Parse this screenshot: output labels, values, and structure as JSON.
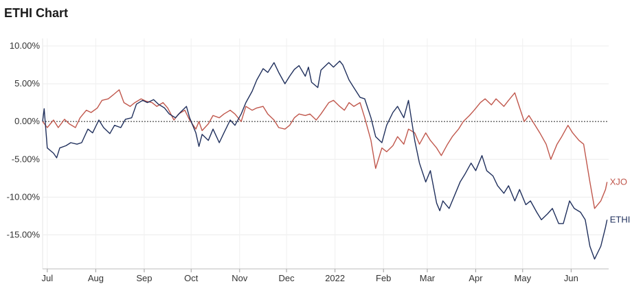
{
  "title": "ETHI Chart",
  "chart_data": {
    "type": "line",
    "title": "ETHI Chart",
    "xlabel": "",
    "ylabel": "",
    "ylim": [
      -19.5,
      11
    ],
    "x_range": [
      "2021-06-28",
      "2022-06-25"
    ],
    "grid": true,
    "zero_line": "dotted",
    "legend": "end-of-line labels",
    "y_ticks": [
      {
        "value": 10,
        "label": "10.00%"
      },
      {
        "value": 5,
        "label": "5.00%"
      },
      {
        "value": 0,
        "label": "0.00%"
      },
      {
        "value": -5,
        "label": "-5.00%"
      },
      {
        "value": -10,
        "label": "-10.00%"
      },
      {
        "value": -15,
        "label": "-15.00%"
      }
    ],
    "x_ticks": [
      {
        "date": "2021-07-01",
        "label": "Jul"
      },
      {
        "date": "2021-08-01",
        "label": "Aug"
      },
      {
        "date": "2021-09-01",
        "label": "Sep"
      },
      {
        "date": "2021-10-01",
        "label": "Oct"
      },
      {
        "date": "2021-11-01",
        "label": "Nov"
      },
      {
        "date": "2021-12-01",
        "label": "Dec"
      },
      {
        "date": "2022-01-01",
        "label": "2022"
      },
      {
        "date": "2022-02-01",
        "label": "Feb"
      },
      {
        "date": "2022-03-01",
        "label": "Mar"
      },
      {
        "date": "2022-04-01",
        "label": "Apr"
      },
      {
        "date": "2022-05-01",
        "label": "May"
      },
      {
        "date": "2022-06-01",
        "label": "Jun"
      }
    ],
    "series": [
      {
        "name": "ETHI",
        "color": "#1f2f5c",
        "points": [
          [
            "2021-06-28",
            0
          ],
          [
            "2021-06-29",
            1.7
          ],
          [
            "2021-07-01",
            -3.5
          ],
          [
            "2021-07-05",
            -4.2
          ],
          [
            "2021-07-07",
            -4.8
          ],
          [
            "2021-07-09",
            -3.5
          ],
          [
            "2021-07-13",
            -3.2
          ],
          [
            "2021-07-16",
            -2.8
          ],
          [
            "2021-07-20",
            -3.0
          ],
          [
            "2021-07-23",
            -2.8
          ],
          [
            "2021-07-27",
            -1.0
          ],
          [
            "2021-07-30",
            -1.5
          ],
          [
            "2021-08-03",
            0.2
          ],
          [
            "2021-08-06",
            -0.8
          ],
          [
            "2021-08-10",
            -1.6
          ],
          [
            "2021-08-13",
            -0.5
          ],
          [
            "2021-08-17",
            -0.8
          ],
          [
            "2021-08-20",
            0.3
          ],
          [
            "2021-08-24",
            0.5
          ],
          [
            "2021-08-27",
            2.3
          ],
          [
            "2021-08-31",
            2.8
          ],
          [
            "2021-09-03",
            2.5
          ],
          [
            "2021-09-07",
            2.9
          ],
          [
            "2021-09-10",
            2.3
          ],
          [
            "2021-09-14",
            1.8
          ],
          [
            "2021-09-17",
            1.0
          ],
          [
            "2021-09-21",
            0.5
          ],
          [
            "2021-09-24",
            1.2
          ],
          [
            "2021-09-28",
            2.0
          ],
          [
            "2021-09-30",
            0.5
          ],
          [
            "2021-10-04",
            -1.5
          ],
          [
            "2021-10-06",
            -3.3
          ],
          [
            "2021-10-08",
            -1.7
          ],
          [
            "2021-10-12",
            -2.5
          ],
          [
            "2021-10-15",
            -1.0
          ],
          [
            "2021-10-19",
            -2.8
          ],
          [
            "2021-10-22",
            -1.5
          ],
          [
            "2021-10-26",
            0.2
          ],
          [
            "2021-10-29",
            -0.5
          ],
          [
            "2021-11-02",
            1.0
          ],
          [
            "2021-11-05",
            2.5
          ],
          [
            "2021-11-09",
            4.0
          ],
          [
            "2021-11-12",
            5.5
          ],
          [
            "2021-11-16",
            7.0
          ],
          [
            "2021-11-19",
            6.5
          ],
          [
            "2021-11-23",
            7.8
          ],
          [
            "2021-11-26",
            6.5
          ],
          [
            "2021-11-30",
            5.0
          ],
          [
            "2021-12-03",
            6.0
          ],
          [
            "2021-12-06",
            6.9
          ],
          [
            "2021-12-09",
            7.4
          ],
          [
            "2021-12-13",
            6.0
          ],
          [
            "2021-12-15",
            7.2
          ],
          [
            "2021-12-17",
            5.2
          ],
          [
            "2021-12-21",
            4.5
          ],
          [
            "2021-12-23",
            6.8
          ],
          [
            "2021-12-28",
            7.8
          ],
          [
            "2021-12-31",
            7.2
          ],
          [
            "2022-01-04",
            8.0
          ],
          [
            "2022-01-06",
            7.5
          ],
          [
            "2022-01-10",
            5.5
          ],
          [
            "2022-01-13",
            4.5
          ],
          [
            "2022-01-17",
            3.2
          ],
          [
            "2022-01-20",
            3.0
          ],
          [
            "2022-01-24",
            0.5
          ],
          [
            "2022-01-27",
            -2.0
          ],
          [
            "2022-01-31",
            -2.8
          ],
          [
            "2022-02-03",
            -0.5
          ],
          [
            "2022-02-07",
            1.2
          ],
          [
            "2022-02-10",
            2.0
          ],
          [
            "2022-02-14",
            0.5
          ],
          [
            "2022-02-17",
            2.8
          ],
          [
            "2022-02-21",
            -2.5
          ],
          [
            "2022-02-24",
            -5.5
          ],
          [
            "2022-02-28",
            -8.0
          ],
          [
            "2022-03-03",
            -6.5
          ],
          [
            "2022-03-07",
            -10.8
          ],
          [
            "2022-03-09",
            -11.8
          ],
          [
            "2022-03-11",
            -10.5
          ],
          [
            "2022-03-15",
            -11.5
          ],
          [
            "2022-03-18",
            -10.0
          ],
          [
            "2022-03-22",
            -8.0
          ],
          [
            "2022-03-25",
            -7.0
          ],
          [
            "2022-03-29",
            -5.5
          ],
          [
            "2022-04-01",
            -6.5
          ],
          [
            "2022-04-05",
            -4.5
          ],
          [
            "2022-04-08",
            -6.5
          ],
          [
            "2022-04-12",
            -7.2
          ],
          [
            "2022-04-15",
            -8.5
          ],
          [
            "2022-04-19",
            -9.5
          ],
          [
            "2022-04-22",
            -8.5
          ],
          [
            "2022-04-26",
            -10.5
          ],
          [
            "2022-04-29",
            -9.0
          ],
          [
            "2022-05-03",
            -11.0
          ],
          [
            "2022-05-06",
            -10.5
          ],
          [
            "2022-05-10",
            -12.0
          ],
          [
            "2022-05-13",
            -13.0
          ],
          [
            "2022-05-17",
            -12.2
          ],
          [
            "2022-05-20",
            -11.5
          ],
          [
            "2022-05-24",
            -13.5
          ],
          [
            "2022-05-27",
            -13.5
          ],
          [
            "2022-05-31",
            -10.5
          ],
          [
            "2022-06-03",
            -11.5
          ],
          [
            "2022-06-07",
            -12.0
          ],
          [
            "2022-06-10",
            -13.0
          ],
          [
            "2022-06-13",
            -16.5
          ],
          [
            "2022-06-16",
            -18.2
          ],
          [
            "2022-06-20",
            -16.5
          ],
          [
            "2022-06-23",
            -14.0
          ],
          [
            "2022-06-24",
            -13.0
          ]
        ]
      },
      {
        "name": "XJO",
        "color": "#c0574c",
        "points": [
          [
            "2021-06-28",
            0
          ],
          [
            "2021-07-01",
            -0.8
          ],
          [
            "2021-07-05",
            0.2
          ],
          [
            "2021-07-08",
            -0.8
          ],
          [
            "2021-07-12",
            0.3
          ],
          [
            "2021-07-15",
            -0.3
          ],
          [
            "2021-07-19",
            -0.8
          ],
          [
            "2021-07-22",
            0.5
          ],
          [
            "2021-07-26",
            1.5
          ],
          [
            "2021-07-29",
            1.2
          ],
          [
            "2021-08-02",
            1.8
          ],
          [
            "2021-08-05",
            2.8
          ],
          [
            "2021-08-09",
            3.0
          ],
          [
            "2021-08-12",
            3.5
          ],
          [
            "2021-08-16",
            4.2
          ],
          [
            "2021-08-19",
            2.5
          ],
          [
            "2021-08-23",
            2.0
          ],
          [
            "2021-08-26",
            2.5
          ],
          [
            "2021-08-30",
            3.0
          ],
          [
            "2021-09-02",
            2.7
          ],
          [
            "2021-09-06",
            2.5
          ],
          [
            "2021-09-09",
            2.0
          ],
          [
            "2021-09-13",
            2.5
          ],
          [
            "2021-09-16",
            1.8
          ],
          [
            "2021-09-20",
            0.2
          ],
          [
            "2021-09-23",
            1.0
          ],
          [
            "2021-09-27",
            1.5
          ],
          [
            "2021-09-30",
            0.2
          ],
          [
            "2021-10-04",
            -1.0
          ],
          [
            "2021-10-06",
            0.0
          ],
          [
            "2021-10-08",
            -1.2
          ],
          [
            "2021-10-12",
            -0.3
          ],
          [
            "2021-10-15",
            0.8
          ],
          [
            "2021-10-19",
            0.5
          ],
          [
            "2021-10-22",
            1.0
          ],
          [
            "2021-10-26",
            1.5
          ],
          [
            "2021-10-29",
            1.0
          ],
          [
            "2021-11-02",
            0.0
          ],
          [
            "2021-11-05",
            2.0
          ],
          [
            "2021-11-09",
            1.5
          ],
          [
            "2021-11-12",
            1.8
          ],
          [
            "2021-11-16",
            2.0
          ],
          [
            "2021-11-19",
            1.0
          ],
          [
            "2021-11-23",
            0.2
          ],
          [
            "2021-11-26",
            -0.8
          ],
          [
            "2021-11-30",
            -1.0
          ],
          [
            "2021-12-03",
            -0.5
          ],
          [
            "2021-12-06",
            0.5
          ],
          [
            "2021-12-09",
            1.0
          ],
          [
            "2021-12-13",
            0.8
          ],
          [
            "2021-12-16",
            1.0
          ],
          [
            "2021-12-20",
            0.2
          ],
          [
            "2021-12-23",
            1.0
          ],
          [
            "2021-12-28",
            2.5
          ],
          [
            "2021-12-31",
            2.8
          ],
          [
            "2022-01-04",
            2.0
          ],
          [
            "2022-01-07",
            1.5
          ],
          [
            "2022-01-10",
            2.5
          ],
          [
            "2022-01-13",
            2.0
          ],
          [
            "2022-01-17",
            2.5
          ],
          [
            "2022-01-20",
            0.5
          ],
          [
            "2022-01-24",
            -2.5
          ],
          [
            "2022-01-27",
            -6.2
          ],
          [
            "2022-01-31",
            -3.5
          ],
          [
            "2022-02-03",
            -4.0
          ],
          [
            "2022-02-07",
            -3.2
          ],
          [
            "2022-02-10",
            -2.0
          ],
          [
            "2022-02-14",
            -3.0
          ],
          [
            "2022-02-17",
            -1.0
          ],
          [
            "2022-02-21",
            -1.5
          ],
          [
            "2022-02-24",
            -3.0
          ],
          [
            "2022-02-28",
            -1.5
          ],
          [
            "2022-03-03",
            -2.5
          ],
          [
            "2022-03-07",
            -3.5
          ],
          [
            "2022-03-10",
            -4.5
          ],
          [
            "2022-03-14",
            -3.0
          ],
          [
            "2022-03-17",
            -2.0
          ],
          [
            "2022-03-21",
            -1.0
          ],
          [
            "2022-03-24",
            0.0
          ],
          [
            "2022-03-28",
            0.8
          ],
          [
            "2022-03-31",
            1.5
          ],
          [
            "2022-04-04",
            2.5
          ],
          [
            "2022-04-07",
            3.0
          ],
          [
            "2022-04-11",
            2.2
          ],
          [
            "2022-04-14",
            3.0
          ],
          [
            "2022-04-19",
            2.0
          ],
          [
            "2022-04-22",
            2.8
          ],
          [
            "2022-04-26",
            3.8
          ],
          [
            "2022-04-28",
            2.5
          ],
          [
            "2022-05-02",
            0.0
          ],
          [
            "2022-05-05",
            0.8
          ],
          [
            "2022-05-09",
            -0.5
          ],
          [
            "2022-05-12",
            -1.5
          ],
          [
            "2022-05-16",
            -3.0
          ],
          [
            "2022-05-19",
            -5.0
          ],
          [
            "2022-05-23",
            -3.0
          ],
          [
            "2022-05-26",
            -2.0
          ],
          [
            "2022-05-30",
            -0.5
          ],
          [
            "2022-06-02",
            -1.5
          ],
          [
            "2022-06-06",
            -2.5
          ],
          [
            "2022-06-09",
            -3.0
          ],
          [
            "2022-06-13",
            -8.0
          ],
          [
            "2022-06-16",
            -11.5
          ],
          [
            "2022-06-20",
            -10.5
          ],
          [
            "2022-06-23",
            -9.0
          ],
          [
            "2022-06-24",
            -8.0
          ]
        ]
      }
    ]
  }
}
